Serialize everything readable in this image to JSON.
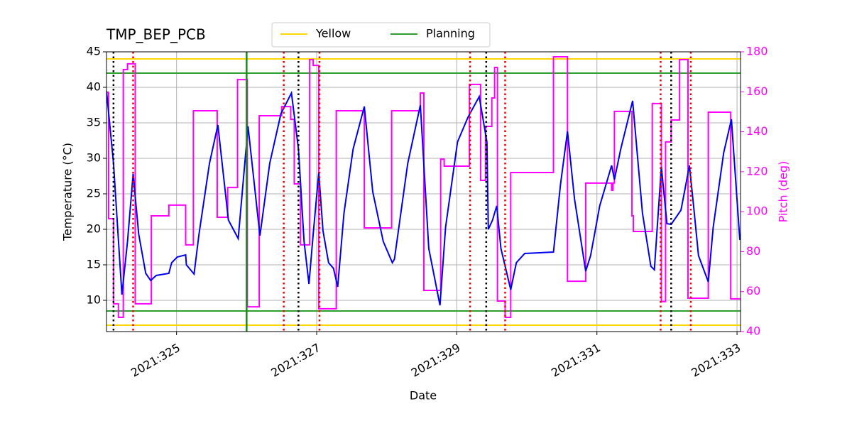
{
  "chart_data": {
    "type": "line",
    "title": "TMP_BEP_PCB",
    "x_label": "Date",
    "y_label": "Temperature (°C)",
    "y2_label": "Pitch (deg)",
    "grid": true,
    "legend_position": "top center",
    "xlim": [
      324.0,
      333.05
    ],
    "xticks": [
      {
        "value": 325,
        "label": "2021:325"
      },
      {
        "value": 327,
        "label": "2021:327"
      },
      {
        "value": 329,
        "label": "2021:329"
      },
      {
        "value": 331,
        "label": "2021:331"
      },
      {
        "value": 333,
        "label": "2021:333"
      }
    ],
    "ylim": [
      5.6,
      45
    ],
    "yticks": [
      10,
      15,
      20,
      25,
      30,
      35,
      40,
      45
    ],
    "y2lim": [
      40,
      180
    ],
    "y2ticks": [
      40,
      60,
      80,
      100,
      120,
      140,
      160,
      180
    ],
    "y2_color": "#ff00ff",
    "series": [
      {
        "name": "Temperature",
        "color": "#0000ee",
        "step": false,
        "x": [
          324.0,
          324.1,
          324.22,
          324.3,
          324.38,
          324.46,
          324.56,
          324.63,
          324.71,
          324.89,
          324.93,
          325.01,
          325.13,
          325.14,
          325.25,
          325.32,
          325.47,
          325.59,
          325.74,
          325.88,
          326.02,
          326.19,
          326.33,
          326.49,
          326.64,
          326.74,
          326.82,
          326.89,
          326.95,
          327.03,
          327.09,
          327.17,
          327.24,
          327.3,
          327.39,
          327.52,
          327.68,
          327.8,
          327.95,
          328.08,
          328.11,
          328.3,
          328.48,
          328.6,
          328.76,
          328.84,
          329.01,
          329.16,
          329.32,
          329.43,
          329.45,
          329.51,
          329.57,
          329.63,
          329.77,
          329.85,
          329.97,
          330.38,
          330.48,
          330.58,
          330.68,
          330.84,
          330.91,
          331.04,
          331.21,
          331.25,
          331.34,
          331.44,
          331.51,
          331.65,
          331.77,
          331.82,
          331.92,
          332.0,
          332.06,
          332.2,
          332.26,
          332.32,
          332.38,
          332.45,
          332.59,
          332.66,
          332.81,
          332.92,
          333.04
        ],
        "values": [
          39.5,
          29.3,
          10.8,
          18.3,
          27.8,
          19.3,
          13.8,
          12.8,
          13.5,
          13.8,
          15.3,
          16.1,
          16.4,
          15.0,
          13.7,
          19.3,
          29.3,
          34.7,
          21.3,
          18.7,
          34.5,
          19.1,
          29.3,
          36.3,
          39.2,
          31.3,
          18.3,
          12.3,
          19.3,
          28.0,
          19.8,
          15.3,
          14.5,
          11.9,
          22.3,
          31.3,
          37.3,
          25.3,
          18.3,
          15.3,
          15.8,
          29.3,
          37.5,
          17.3,
          9.3,
          20.3,
          32.3,
          35.8,
          38.7,
          32.3,
          20.0,
          21.3,
          23.3,
          17.3,
          11.5,
          15.3,
          16.6,
          16.8,
          26.3,
          33.8,
          24.3,
          14.1,
          16.3,
          23.3,
          29.0,
          27.0,
          31.3,
          35.3,
          38.1,
          22.3,
          14.8,
          14.3,
          28.8,
          20.8,
          20.7,
          22.7,
          25.8,
          29.0,
          23.3,
          16.3,
          12.6,
          20.3,
          30.8,
          35.5,
          18.5
        ]
      },
      {
        "name": "Pitch",
        "color": "#ff00ff",
        "axis": "y2",
        "step": true,
        "x": [
          324.0,
          324.03,
          324.1,
          324.17,
          324.24,
          324.3,
          324.41,
          324.64,
          324.89,
          325.13,
          325.24,
          325.58,
          325.73,
          325.87,
          326.01,
          326.18,
          326.5,
          326.63,
          326.68,
          326.77,
          326.9,
          326.95,
          327.03,
          327.28,
          327.68,
          328.07,
          328.48,
          328.53,
          328.77,
          328.82,
          329.18,
          329.34,
          329.41,
          329.5,
          329.54,
          329.58,
          329.69,
          329.77,
          330.38,
          330.58,
          330.84,
          331.21,
          331.23,
          331.25,
          331.5,
          331.52,
          331.79,
          331.92,
          331.98,
          332.06,
          332.18,
          332.3,
          332.59,
          332.91
        ],
        "values": [
          159.7,
          96.5,
          53.9,
          47.1,
          171.1,
          174.0,
          53.9,
          97.9,
          103.3,
          83.4,
          150.5,
          97.2,
          112.1,
          166.1,
          52.4,
          148.0,
          152.6,
          146.2,
          113.9,
          83.4,
          176.1,
          173.2,
          51.4,
          150.5,
          91.9,
          150.5,
          159.4,
          60.6,
          126.3,
          122.8,
          163.7,
          115.7,
          142.7,
          156.9,
          172.2,
          55.3,
          47.1,
          119.6,
          177.5,
          65.2,
          114.3,
          110.7,
          114.3,
          150.2,
          97.9,
          90.1,
          154.1,
          55.0,
          134.9,
          145.9,
          176.1,
          56.7,
          149.8,
          56.4
        ]
      }
    ],
    "hlines": [
      {
        "name": "Yellow",
        "color": "#ffd700",
        "values": [
          44,
          6.5
        ]
      },
      {
        "name": "Planning",
        "color": "#2ca02c",
        "values": [
          42,
          8.5
        ]
      }
    ],
    "vlines": [
      {
        "color": "#000000",
        "style": "dotted",
        "x": [
          324.1,
          326.74,
          329.42,
          332.06
        ]
      },
      {
        "color": "#ee0000",
        "style": "dotted",
        "x": [
          324.38,
          326.53,
          327.04,
          329.19,
          329.69,
          331.91,
          332.34
        ]
      },
      {
        "color": "#1a8a1a",
        "style": "solid",
        "x": [
          326.0
        ]
      }
    ]
  }
}
